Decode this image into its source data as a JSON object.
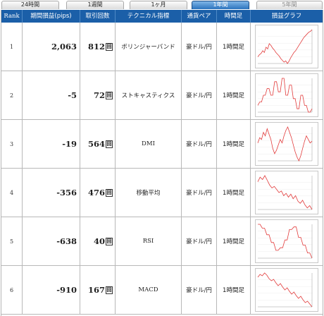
{
  "tabs": [
    {
      "label": "24時間",
      "active": false
    },
    {
      "label": "1週間",
      "active": false
    },
    {
      "label": "1ヶ月",
      "active": false
    },
    {
      "label": "1年間",
      "active": true
    },
    {
      "label": "5年間",
      "active": false
    }
  ],
  "header": {
    "rank": "Rank",
    "pips": "期間損益(pips)",
    "count": "取引回数",
    "technical": "テクニカル指標",
    "pair": "通貨ペア",
    "timeframe": "時間足",
    "graph": "損益グラフ"
  },
  "count_unit": "回",
  "rows": [
    {
      "rank": "1",
      "pips": "2,063",
      "count": "812",
      "technical": "ボリンジャーバンド",
      "pair": "豪ドル/円",
      "timeframe": "1時間足",
      "graph": [
        0,
        5,
        8,
        14,
        10,
        22,
        18,
        30,
        26,
        20,
        16,
        10,
        6,
        2,
        -4,
        -8,
        -12,
        -9,
        -15,
        -10,
        -2,
        4,
        10,
        14,
        20,
        26,
        32,
        38,
        44,
        48,
        52,
        56,
        58,
        62
      ]
    },
    {
      "rank": "2",
      "pips": "-5",
      "count": "72",
      "technical": "ストキャスティクス",
      "pair": "豪ドル/円",
      "timeframe": "1時間足",
      "graph": [
        0,
        1,
        1,
        3,
        3,
        5,
        5,
        3,
        3,
        7,
        7,
        4,
        4,
        8,
        8,
        3,
        3,
        6,
        6,
        2,
        2,
        -1,
        -1,
        3,
        3,
        0,
        0,
        -2,
        -2,
        -1
      ]
    },
    {
      "rank": "3",
      "pips": "-19",
      "count": "564",
      "technical": "DMI",
      "pair": "豪ドル/円",
      "timeframe": "1時間足",
      "graph": [
        0,
        3,
        2,
        6,
        4,
        8,
        5,
        2,
        -3,
        -6,
        -4,
        -1,
        2,
        0,
        4,
        7,
        9,
        6,
        3,
        -1,
        -5,
        -8,
        -10,
        -7,
        -3,
        1,
        4,
        2,
        0,
        1
      ]
    },
    {
      "rank": "4",
      "pips": "-356",
      "count": "476",
      "technical": "移動平均",
      "pair": "豪ドル/円",
      "timeframe": "1時間足",
      "graph": [
        0,
        6,
        3,
        8,
        2,
        -4,
        -8,
        -6,
        -10,
        -14,
        -12,
        -18,
        -15,
        -20,
        -16,
        -22,
        -18,
        -25,
        -28,
        -24,
        -30,
        -34,
        -31,
        -36
      ]
    },
    {
      "rank": "5",
      "pips": "-638",
      "count": "40",
      "technical": "RSI",
      "pair": "豪ドル/円",
      "timeframe": "1時間足",
      "graph": [
        0,
        0,
        -3,
        -3,
        -8,
        -8,
        -14,
        -14,
        -20,
        -20,
        -18,
        -18,
        -12,
        -12,
        -4,
        -4,
        -2,
        -2,
        -10,
        -10,
        -16,
        -16,
        -22,
        -22,
        -26
      ]
    },
    {
      "rank": "6",
      "pips": "-910",
      "count": "167",
      "technical": "MACD",
      "pair": "豪ドル/円",
      "timeframe": "1時間足",
      "graph": [
        0,
        4,
        2,
        6,
        3,
        -2,
        -5,
        -3,
        -8,
        -12,
        -9,
        -14,
        -18,
        -15,
        -20,
        -24,
        -21,
        -26,
        -30,
        -27,
        -32,
        -36,
        -34,
        -38,
        -42
      ]
    }
  ],
  "colors": {
    "header_bg": "#1b5fa8",
    "tab_active": "#2a73bd",
    "graph_line": "#e23b3b"
  }
}
